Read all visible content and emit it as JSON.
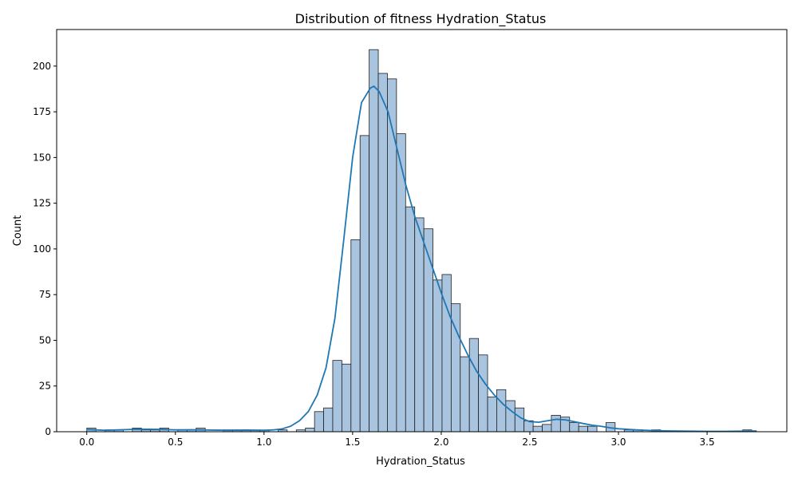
{
  "chart_data": {
    "type": "bar",
    "subtype": "histogram-with-kde",
    "title": "Distribution of fitness Hydration_Status",
    "xlabel": "Hydration_Status",
    "ylabel": "Count",
    "xlim": [
      -0.17,
      3.95
    ],
    "ylim": [
      0,
      220
    ],
    "xticks": [
      0.0,
      0.5,
      1.0,
      1.5,
      2.0,
      2.5,
      3.0,
      3.5
    ],
    "xtick_labels": [
      "0.0",
      "0.5",
      "1.0",
      "1.5",
      "2.0",
      "2.5",
      "3.0",
      "3.5"
    ],
    "yticks": [
      0,
      25,
      50,
      75,
      100,
      125,
      150,
      175,
      200
    ],
    "ytick_labels": [
      "0",
      "25",
      "50",
      "75",
      "100",
      "125",
      "150",
      "175",
      "200"
    ],
    "grid": false,
    "bin_start": 0.0,
    "bin_width": 0.0514,
    "counts": [
      2,
      0,
      1,
      1,
      0,
      2,
      1,
      1,
      2,
      0,
      1,
      1,
      2,
      0,
      0,
      1,
      1,
      1,
      1,
      1,
      0,
      1,
      0,
      1,
      2,
      11,
      13,
      39,
      37,
      105,
      162,
      209,
      196,
      193,
      163,
      123,
      117,
      111,
      83,
      86,
      70,
      41,
      51,
      42,
      19,
      23,
      17,
      13,
      6,
      3,
      4,
      9,
      8,
      5,
      3,
      3,
      0,
      5,
      0,
      1,
      1,
      0,
      1,
      0,
      0,
      0,
      0,
      0,
      0,
      0,
      0,
      0,
      1
    ],
    "kde": {
      "x": [
        0.0,
        0.1,
        0.2,
        0.3,
        0.4,
        0.5,
        0.6,
        0.7,
        0.8,
        0.9,
        1.0,
        1.05,
        1.1,
        1.15,
        1.2,
        1.25,
        1.3,
        1.35,
        1.4,
        1.45,
        1.5,
        1.55,
        1.6,
        1.62,
        1.65,
        1.7,
        1.75,
        1.8,
        1.85,
        1.9,
        1.95,
        2.0,
        2.05,
        2.1,
        2.15,
        2.2,
        2.25,
        2.3,
        2.35,
        2.4,
        2.45,
        2.5,
        2.55,
        2.6,
        2.65,
        2.7,
        2.75,
        2.8,
        2.85,
        2.9,
        2.95,
        3.0,
        3.1,
        3.2,
        3.3,
        3.4,
        3.5,
        3.6,
        3.7,
        3.78
      ],
      "y": [
        1.2,
        0.8,
        1.1,
        1.4,
        1.3,
        1.0,
        1.1,
        0.9,
        0.8,
        0.9,
        0.7,
        1.0,
        1.5,
        3,
        6,
        11,
        20,
        35,
        62,
        105,
        150,
        180,
        188,
        189,
        186,
        175,
        155,
        135,
        118,
        104,
        90,
        76,
        63,
        52,
        42,
        33,
        26,
        20,
        15,
        11,
        7.5,
        5.5,
        5.2,
        6,
        6.8,
        6.5,
        5.5,
        4.5,
        3.6,
        3,
        2.2,
        1.6,
        1,
        0.6,
        0.4,
        0.3,
        0.2,
        0.2,
        0.3,
        0.4
      ]
    },
    "colors": {
      "bar_fill": "#a9c4df",
      "bar_edge": "#1f1f1f",
      "kde_line": "#1f77b4"
    }
  }
}
